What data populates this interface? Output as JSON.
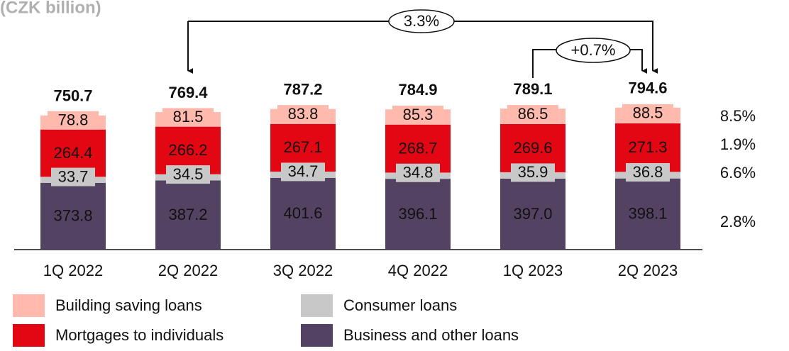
{
  "chart_data": {
    "type": "stacked-bar",
    "title": "(CZK billion)",
    "categories": [
      "1Q 2022",
      "2Q 2022",
      "3Q 2022",
      "4Q 2022",
      "1Q 2023",
      "2Q 2023"
    ],
    "series": [
      {
        "name": "Business and other loans",
        "color": "#544263",
        "values": [
          373.8,
          387.2,
          401.6,
          396.1,
          397.0,
          398.1
        ],
        "value_labels": [
          "373.8",
          "387.2",
          "401.6",
          "396.1",
          "397.0",
          "398.1"
        ],
        "change": "2.8%"
      },
      {
        "name": "Consumer loans",
        "color": "#c8c8c8",
        "values": [
          33.7,
          34.5,
          34.7,
          34.8,
          35.9,
          36.8
        ],
        "change": "6.6%"
      },
      {
        "name": "Mortgages to individuals",
        "color": "#e30613",
        "values": [
          264.4,
          266.2,
          267.1,
          268.7,
          269.6,
          271.3
        ],
        "change": "1.9%"
      },
      {
        "name": "Building saving loans",
        "color": "#ffb9ad",
        "values": [
          78.8,
          81.5,
          83.8,
          85.3,
          86.5,
          88.5
        ],
        "change": "8.5%"
      }
    ],
    "totals": [
      750.7,
      769.4,
      787.2,
      784.9,
      789.1,
      794.6
    ],
    "annotations": [
      "3.3%",
      "+0.7%"
    ]
  }
}
